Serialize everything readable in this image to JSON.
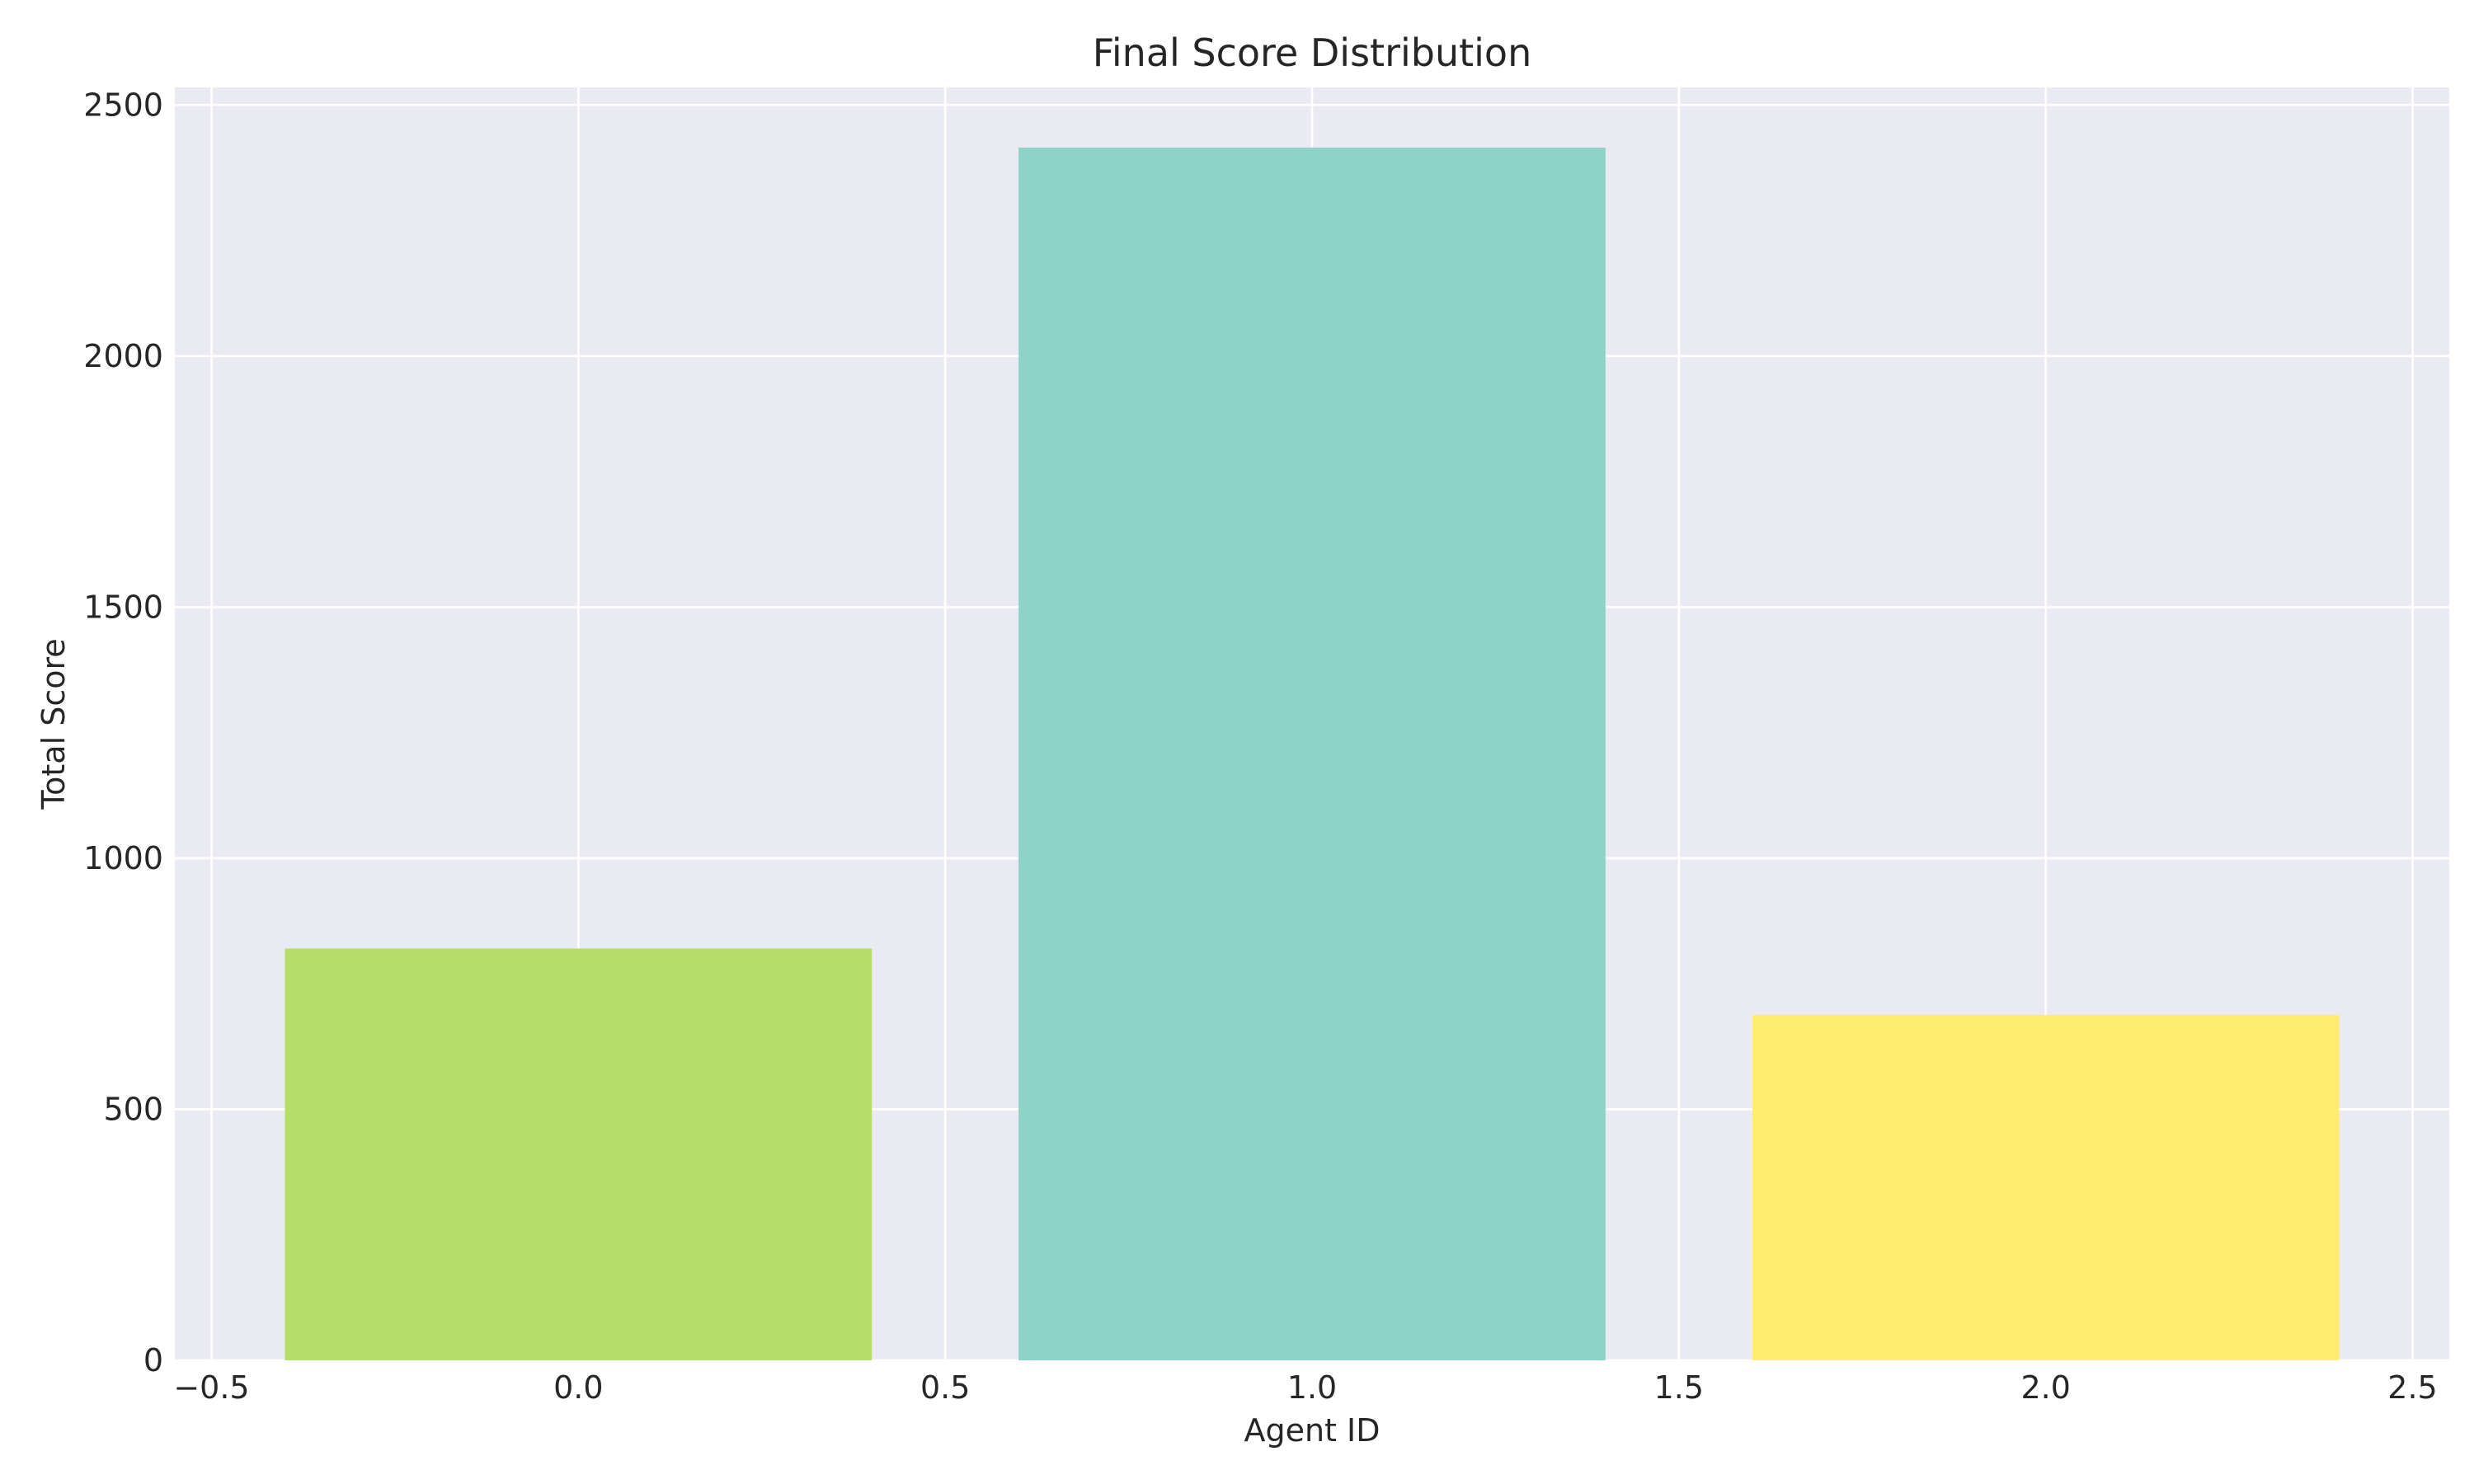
{
  "chart_data": {
    "type": "bar",
    "title": "Final Score Distribution",
    "xlabel": "Agent ID",
    "ylabel": "Total Score",
    "categories": [
      0,
      1,
      2
    ],
    "values": [
      820,
      2415,
      688
    ],
    "bar_width": 0.8,
    "colors": [
      "#b3de69",
      "#8dd3c7",
      "#ffed6f"
    ],
    "xlim": [
      -0.55,
      2.55
    ],
    "ylim": [
      0,
      2535
    ],
    "xticks": [
      -0.5,
      0.0,
      0.5,
      1.0,
      1.5,
      2.0,
      2.5
    ],
    "xtick_labels": [
      "−0.5",
      "0.0",
      "0.5",
      "1.0",
      "1.5",
      "2.0",
      "2.5"
    ],
    "yticks": [
      0,
      500,
      1000,
      1500,
      2000,
      2500
    ],
    "ytick_labels": [
      "0",
      "500",
      "1000",
      "1500",
      "2000",
      "2500"
    ],
    "grid": true,
    "plot_background": "#eaeaf2",
    "grid_color": "#ffffff",
    "text_color": "#262626"
  }
}
